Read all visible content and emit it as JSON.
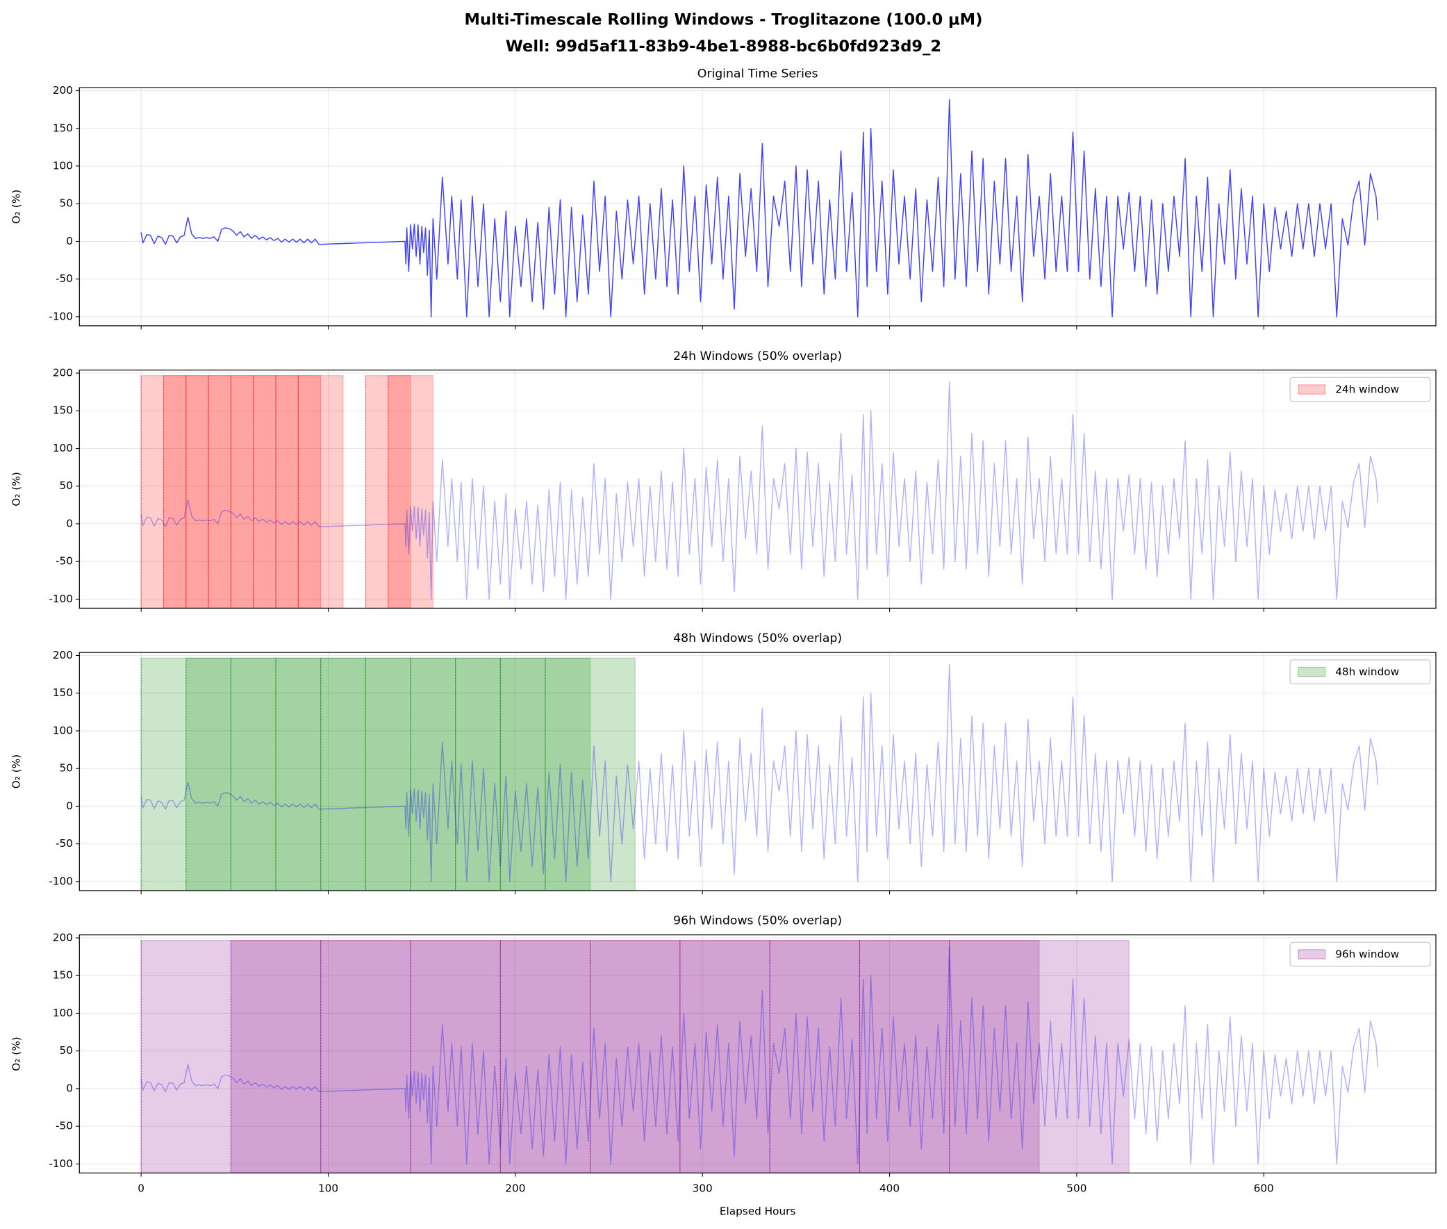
{
  "chart_data": {
    "type": "line",
    "title": "Multi-Timescale Rolling Windows - Troglitazone (100.0 µM)",
    "subtitle": "Well: 99d5af11-83b9-4be1-8988-bc6b0fd923d9_2",
    "xlabel": "Elapsed Hours",
    "ylabel": "O₂ (%)",
    "xlim": [
      -33,
      692
    ],
    "xticks": [
      0,
      100,
      200,
      300,
      400,
      500,
      600
    ],
    "ylim": [
      -112,
      204
    ],
    "yticks": [
      -100,
      -50,
      0,
      50,
      100,
      150,
      200
    ],
    "grid": true,
    "x": [
      0,
      1,
      3,
      5,
      7,
      9,
      11,
      13,
      15,
      17,
      19,
      21,
      23,
      25,
      27,
      29,
      31,
      33,
      35,
      37,
      39,
      41,
      43,
      45,
      47,
      49,
      51,
      53,
      55,
      57,
      59,
      61,
      63,
      65,
      67,
      69,
      71,
      73,
      75,
      77,
      79,
      81,
      83,
      85,
      87,
      89,
      91,
      93,
      95,
      141,
      141.5,
      142,
      143,
      144,
      145,
      146,
      147,
      148,
      149,
      150,
      151,
      152,
      153,
      154,
      155,
      156,
      158,
      161,
      164,
      166,
      169,
      171,
      174,
      177,
      180,
      183,
      186,
      189,
      192,
      195,
      197,
      200,
      203,
      206,
      209,
      212,
      215,
      218,
      221,
      224,
      227,
      230,
      233,
      236,
      239,
      242,
      245,
      248,
      251,
      254,
      257,
      260,
      263,
      266,
      269,
      272,
      275,
      278,
      281,
      284,
      287,
      290,
      293,
      296,
      299,
      302,
      305,
      308,
      311,
      314,
      317,
      320,
      323,
      326,
      329,
      332,
      335,
      338,
      341,
      344,
      347,
      350,
      353,
      356,
      359,
      362,
      365,
      368,
      371,
      374,
      377,
      380,
      383,
      386,
      388,
      390,
      393,
      396,
      399,
      402,
      405,
      408,
      411,
      414,
      417,
      420,
      423,
      426,
      429,
      432,
      435,
      438,
      441,
      444,
      447,
      450,
      453,
      456,
      459,
      462,
      465,
      468,
      471,
      474,
      477,
      480,
      483,
      486,
      489,
      492,
      495,
      498,
      501,
      504,
      507,
      510,
      513,
      516,
      519,
      522,
      525,
      528,
      531,
      534,
      537,
      540,
      543,
      546,
      549,
      552,
      555,
      558,
      561,
      564,
      567,
      570,
      573,
      576,
      579,
      582,
      585,
      588,
      591,
      594,
      597,
      600,
      603,
      606,
      609,
      612,
      615,
      618,
      621,
      624,
      627,
      630,
      633,
      636,
      639,
      642,
      645,
      648,
      651,
      654,
      657,
      660,
      661
    ],
    "series": [
      {
        "color": "#0000ff",
        "values": [
          12,
          -2,
          9,
          8,
          -3,
          7,
          5,
          -4,
          8,
          7,
          -2,
          6,
          8,
          32,
          10,
          4,
          5,
          4,
          5,
          4,
          6,
          0,
          16,
          18,
          17,
          14,
          8,
          13,
          6,
          10,
          4,
          8,
          3,
          6,
          2,
          5,
          1,
          4,
          -1,
          3,
          -1,
          3,
          -1,
          3,
          -2,
          3,
          -2,
          3,
          -4,
          0,
          -30,
          18,
          -40,
          22,
          -10,
          23,
          -20,
          22,
          -30,
          20,
          -15,
          18,
          -45,
          15,
          -100,
          30,
          -50,
          85,
          -30,
          60,
          -50,
          55,
          -100,
          60,
          -60,
          50,
          -100,
          30,
          -80,
          40,
          -100,
          20,
          -60,
          30,
          -80,
          25,
          -90,
          45,
          -70,
          55,
          -100,
          45,
          -80,
          35,
          -70,
          80,
          -40,
          60,
          -100,
          40,
          -50,
          55,
          -30,
          60,
          -70,
          50,
          -50,
          70,
          -60,
          55,
          -70,
          100,
          -40,
          60,
          -80,
          75,
          -30,
          85,
          -50,
          60,
          -90,
          90,
          -20,
          70,
          -40,
          130,
          -60,
          60,
          20,
          80,
          -40,
          100,
          -60,
          95,
          -30,
          80,
          -70,
          55,
          -50,
          120,
          -40,
          65,
          -100,
          145,
          -60,
          150,
          -40,
          80,
          -70,
          95,
          -30,
          60,
          -50,
          70,
          -80,
          55,
          -40,
          85,
          -60,
          188,
          -50,
          90,
          -60,
          120,
          -40,
          110,
          -70,
          80,
          -30,
          110,
          -40,
          60,
          -80,
          115,
          -20,
          60,
          -50,
          90,
          -40,
          60,
          -40,
          145,
          -40,
          120,
          -50,
          70,
          -60,
          60,
          -100,
          60,
          -10,
          65,
          -40,
          60,
          -60,
          55,
          -70,
          50,
          -40,
          60,
          -20,
          110,
          -100,
          60,
          -40,
          85,
          -100,
          50,
          -30,
          95,
          -50,
          70,
          -30,
          60,
          -100,
          50,
          -40,
          45,
          -10,
          40,
          -20,
          50,
          -10,
          50,
          -20,
          50,
          -10,
          50,
          -100,
          30,
          -5,
          55,
          80,
          -5,
          90,
          60,
          28
        ]
      }
    ],
    "panels": [
      {
        "title": "Original Time Series"
      },
      {
        "title": "24h Windows (50% overlap)",
        "windows": {
          "name": "24h window",
          "color": "#ff0000",
          "starts": [
            0,
            12,
            24,
            36,
            48,
            60,
            72,
            84,
            120,
            132
          ],
          "ends": [
            24,
            36,
            48,
            60,
            72,
            84,
            96,
            108,
            144,
            156
          ]
        }
      },
      {
        "title": "48h Windows (50% overlap)",
        "windows": {
          "name": "48h window",
          "color": "#008000",
          "starts": [
            0,
            24,
            48,
            72,
            96,
            120,
            144,
            168,
            192,
            216
          ],
          "ends": [
            48,
            72,
            96,
            120,
            144,
            168,
            192,
            216,
            240,
            264
          ]
        }
      },
      {
        "title": "96h Windows (50% overlap)",
        "windows": {
          "name": "96h window",
          "color": "#800080",
          "starts": [
            0,
            48,
            96,
            144,
            192,
            240,
            288,
            336,
            384,
            432
          ],
          "ends": [
            96,
            144,
            192,
            240,
            288,
            336,
            384,
            432,
            480,
            528
          ]
        }
      }
    ]
  }
}
